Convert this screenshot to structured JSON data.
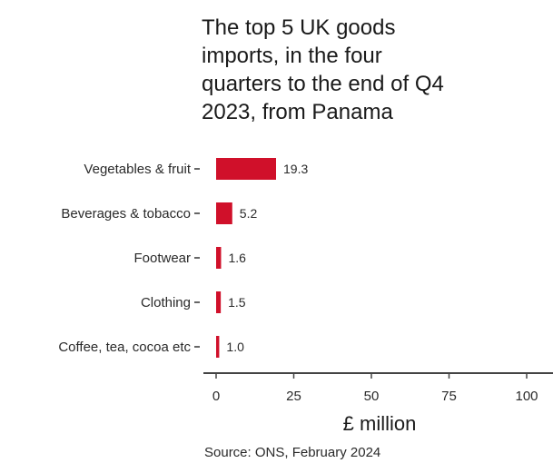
{
  "chart_data": {
    "type": "bar",
    "orientation": "horizontal",
    "title_lines": [
      "The top 5 UK goods",
      "imports, in the four",
      "quarters to the end of Q4",
      "2023, from Panama"
    ],
    "categories": [
      "Vegetables & fruit",
      "Beverages & tobacco",
      "Footwear",
      "Clothing",
      "Coffee, tea, cocoa etc"
    ],
    "values": [
      19.3,
      5.2,
      1.6,
      1.5,
      1.0
    ],
    "value_labels": [
      "19.3",
      "5.2",
      "1.6",
      "1.5",
      "1.0"
    ],
    "xlabel": "£ million",
    "xlim": [
      0,
      100
    ],
    "x_ticks": [
      0,
      25,
      50,
      75,
      100
    ],
    "bar_color": "#d0102a",
    "grid": false,
    "source": "Source: ONS, February 2024"
  }
}
